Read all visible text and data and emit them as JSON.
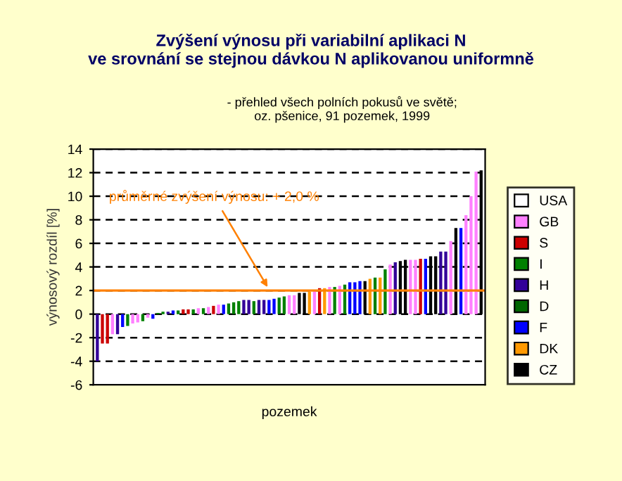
{
  "chart_data": {
    "type": "bar",
    "title": "Zvýšení výnosu při variabilní aplikaci N\nve srovnání se stejnou dávkou N aplikovanou uniformně",
    "subtitle": "- přehled všech polních pokusů ve světě;\noz. pšenice, 91 pozemek, 1999",
    "xlabel": "pozemek",
    "ylabel": "výnosový rozdíl [%]",
    "categories": [
      null,
      null,
      null,
      null,
      null,
      null,
      null,
      null,
      null,
      null,
      null,
      null,
      null,
      null,
      null,
      null,
      null,
      null,
      null,
      null,
      null,
      null,
      null,
      null,
      null,
      null,
      null,
      null,
      null,
      null,
      null,
      null,
      null,
      null,
      null,
      null,
      null,
      null,
      null,
      null,
      null,
      null,
      null,
      null,
      null,
      null,
      null,
      null,
      null,
      null,
      null,
      null,
      null,
      null,
      null,
      null,
      null,
      null,
      null,
      null,
      null,
      null,
      null,
      null,
      null,
      null,
      null,
      null,
      null,
      null,
      null,
      null,
      null,
      null,
      null,
      null,
      null
    ],
    "ylim": [
      -6,
      14
    ],
    "yticks": [
      -6,
      -4,
      -2,
      0,
      2,
      4,
      6,
      8,
      10,
      12,
      14
    ],
    "grid": "y",
    "legend": "right",
    "stacked": true,
    "series": [
      {
        "name": "USA",
        "color": "#ffffff",
        "values": [
          null,
          null,
          null,
          null,
          null,
          null,
          null,
          null,
          null,
          null,
          null,
          null,
          null,
          null,
          null,
          null,
          null,
          null,
          null,
          null,
          null,
          null,
          null,
          null,
          null,
          null,
          null,
          null,
          null,
          null,
          null,
          null,
          null,
          null,
          null,
          null,
          null,
          null,
          null,
          null,
          null,
          null,
          null,
          null,
          null,
          null,
          null,
          null,
          null,
          null,
          null,
          null,
          null,
          null,
          null,
          null,
          null,
          null,
          null,
          null,
          null,
          null,
          null,
          null,
          null,
          null,
          null,
          null,
          null,
          null,
          null,
          null,
          null,
          null,
          null,
          null,
          null
        ]
      },
      {
        "name": "GB",
        "color": "#ff80ff",
        "values": [
          null,
          null,
          null,
          -1.7,
          null,
          null,
          null,
          -0.8,
          -0.7,
          null,
          -0.3,
          null,
          null,
          null,
          null,
          null,
          null,
          null,
          null,
          null,
          0.5,
          null,
          0.6,
          null,
          0.8,
          null,
          null,
          null,
          null,
          null,
          null,
          null,
          null,
          null,
          null,
          null,
          null,
          null,
          1.6,
          1.6,
          null,
          null,
          null,
          2.0,
          null,
          null,
          2.3,
          null,
          2.4,
          null,
          null,
          null,
          null,
          null,
          null,
          null,
          null,
          null,
          4.2,
          null,
          null,
          null,
          4.6,
          4.6,
          null,
          null,
          null,
          null,
          null,
          null,
          6.2,
          null,
          null,
          8.4,
          10.0,
          12.1,
          null
        ]
      },
      {
        "name": "S",
        "color": "#cc0000",
        "values": [
          null,
          -2.5,
          -2.5,
          null,
          null,
          null,
          null,
          null,
          null,
          null,
          null,
          null,
          null,
          null,
          null,
          null,
          null,
          0.4,
          0.4,
          null,
          null,
          null,
          null,
          0.7,
          null,
          null,
          null,
          null,
          null,
          null,
          null,
          null,
          null,
          null,
          null,
          null,
          null,
          null,
          null,
          null,
          null,
          null,
          null,
          null,
          2.2,
          null,
          null,
          null,
          null,
          null,
          null,
          null,
          null,
          null,
          null,
          null,
          null,
          null,
          null,
          null,
          null,
          null,
          null,
          null,
          4.7,
          null,
          null,
          null,
          null,
          null,
          null,
          null,
          null,
          null,
          null,
          null,
          null
        ]
      },
      {
        "name": "I",
        "color": "#008000",
        "values": [
          null,
          null,
          null,
          null,
          null,
          null,
          -1.0,
          null,
          null,
          -0.6,
          null,
          null,
          0.1,
          0.2,
          null,
          null,
          0.3,
          null,
          null,
          0.4,
          null,
          0.5,
          null,
          null,
          null,
          null,
          0.9,
          1.0,
          1.1,
          null,
          null,
          1.1,
          null,
          null,
          null,
          null,
          1.4,
          1.5,
          null,
          null,
          null,
          null,
          null,
          null,
          null,
          null,
          null,
          2.3,
          null,
          2.5,
          null,
          null,
          null,
          null,
          null,
          3.1,
          null,
          3.8,
          null,
          null,
          null,
          null,
          null,
          null,
          null,
          null,
          null,
          null,
          null,
          null,
          null,
          null,
          null,
          null,
          null,
          null,
          null
        ]
      },
      {
        "name": "H",
        "color": "#330099",
        "values": [
          -4.0,
          null,
          null,
          null,
          -1.7,
          null,
          null,
          null,
          null,
          null,
          null,
          null,
          null,
          null,
          0.2,
          null,
          null,
          null,
          null,
          null,
          null,
          null,
          null,
          null,
          null,
          null,
          null,
          null,
          null,
          1.2,
          1.2,
          null,
          1.2,
          1.2,
          null,
          null,
          null,
          null,
          null,
          null,
          null,
          null,
          null,
          null,
          null,
          null,
          null,
          null,
          null,
          null,
          null,
          null,
          null,
          null,
          null,
          null,
          null,
          null,
          null,
          4.4,
          null,
          null,
          null,
          null,
          null,
          null,
          null,
          null,
          5.3,
          5.3,
          null,
          null,
          null,
          null,
          null,
          null,
          null
        ]
      },
      {
        "name": "D",
        "color": "#006600",
        "values": [
          null,
          null,
          null,
          null,
          null,
          null,
          null,
          null,
          null,
          null,
          null,
          null,
          null,
          null,
          null,
          null,
          null,
          null,
          null,
          null,
          null,
          null,
          null,
          null,
          null,
          null,
          null,
          null,
          null,
          null,
          null,
          null,
          null,
          null,
          null,
          null,
          null,
          null,
          null,
          null,
          null,
          null,
          null,
          null,
          null,
          null,
          null,
          null,
          null,
          null,
          null,
          null,
          null,
          null,
          null,
          null,
          null,
          null,
          null,
          null,
          null,
          null,
          null,
          null,
          null,
          null,
          null,
          null,
          null,
          null,
          null,
          null,
          null,
          null,
          null,
          null,
          null
        ]
      },
      {
        "name": "F",
        "color": "#0000ff",
        "values": [
          null,
          null,
          null,
          null,
          null,
          -1.1,
          null,
          null,
          null,
          null,
          null,
          -0.4,
          null,
          null,
          null,
          0.3,
          null,
          null,
          null,
          null,
          null,
          null,
          null,
          null,
          null,
          0.8,
          null,
          null,
          null,
          null,
          null,
          null,
          null,
          null,
          1.2,
          1.3,
          null,
          null,
          null,
          null,
          null,
          null,
          null,
          null,
          null,
          null,
          null,
          null,
          null,
          null,
          2.7,
          2.7,
          2.8,
          null,
          null,
          null,
          null,
          null,
          null,
          null,
          null,
          null,
          null,
          null,
          null,
          4.7,
          null,
          null,
          null,
          null,
          null,
          null,
          7.3,
          null,
          null,
          null,
          null
        ]
      },
      {
        "name": "DK",
        "color": "#ff9900",
        "values": [
          null,
          null,
          null,
          null,
          null,
          null,
          null,
          null,
          null,
          null,
          null,
          null,
          null,
          null,
          null,
          null,
          null,
          null,
          null,
          null,
          null,
          null,
          null,
          null,
          null,
          null,
          null,
          null,
          null,
          null,
          null,
          null,
          null,
          null,
          null,
          null,
          null,
          null,
          null,
          null,
          null,
          null,
          1.9,
          null,
          null,
          2.2,
          null,
          null,
          null,
          null,
          null,
          null,
          null,
          null,
          3.0,
          null,
          3.1,
          null,
          null,
          null,
          null,
          null,
          null,
          null,
          null,
          null,
          null,
          null,
          null,
          null,
          null,
          null,
          null,
          null,
          null,
          null,
          null
        ]
      },
      {
        "name": "CZ",
        "color": "#000000",
        "values": [
          null,
          null,
          null,
          null,
          null,
          null,
          null,
          null,
          null,
          null,
          null,
          null,
          null,
          null,
          null,
          null,
          null,
          null,
          null,
          null,
          null,
          null,
          null,
          null,
          null,
          null,
          null,
          null,
          null,
          null,
          null,
          null,
          null,
          null,
          null,
          null,
          null,
          null,
          null,
          null,
          1.8,
          1.8,
          null,
          null,
          null,
          null,
          null,
          null,
          null,
          null,
          null,
          null,
          null,
          2.8,
          null,
          null,
          null,
          null,
          null,
          null,
          4.5,
          4.6,
          null,
          null,
          null,
          null,
          4.9,
          4.9,
          null,
          null,
          null,
          7.3,
          null,
          null,
          null,
          null,
          12.2
        ]
      }
    ],
    "ref_lines": [
      {
        "axis": "y",
        "value": 2.0,
        "color": "#ff8000",
        "line_style": "solid"
      }
    ],
    "annotations": [
      "průměrné zvýšení výnosu: + 2,0 %"
    ]
  }
}
